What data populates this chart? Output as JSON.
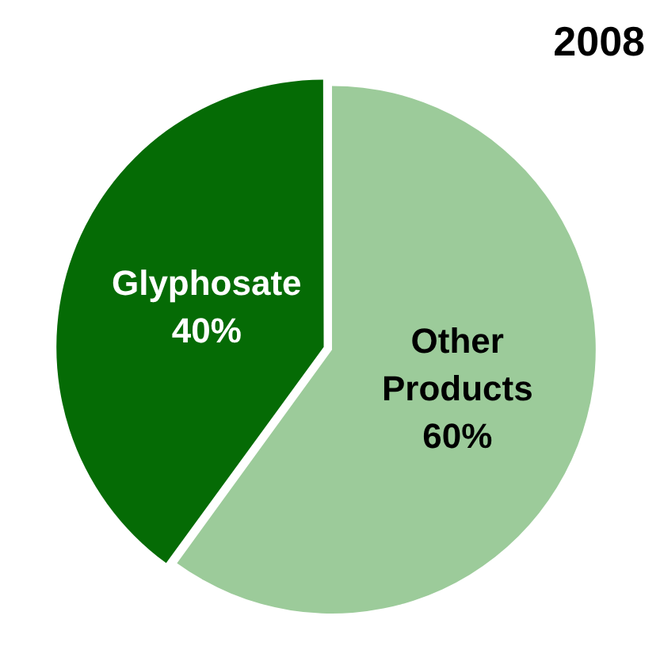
{
  "chart_data": {
    "type": "pie",
    "title": "2008",
    "categories": [
      "Glyphosate",
      "Other Products"
    ],
    "values": [
      40,
      60
    ],
    "colors": [
      "#056b05",
      "#9ccb9a"
    ],
    "value_labels": [
      "40%",
      "60%"
    ],
    "legend": false
  }
}
